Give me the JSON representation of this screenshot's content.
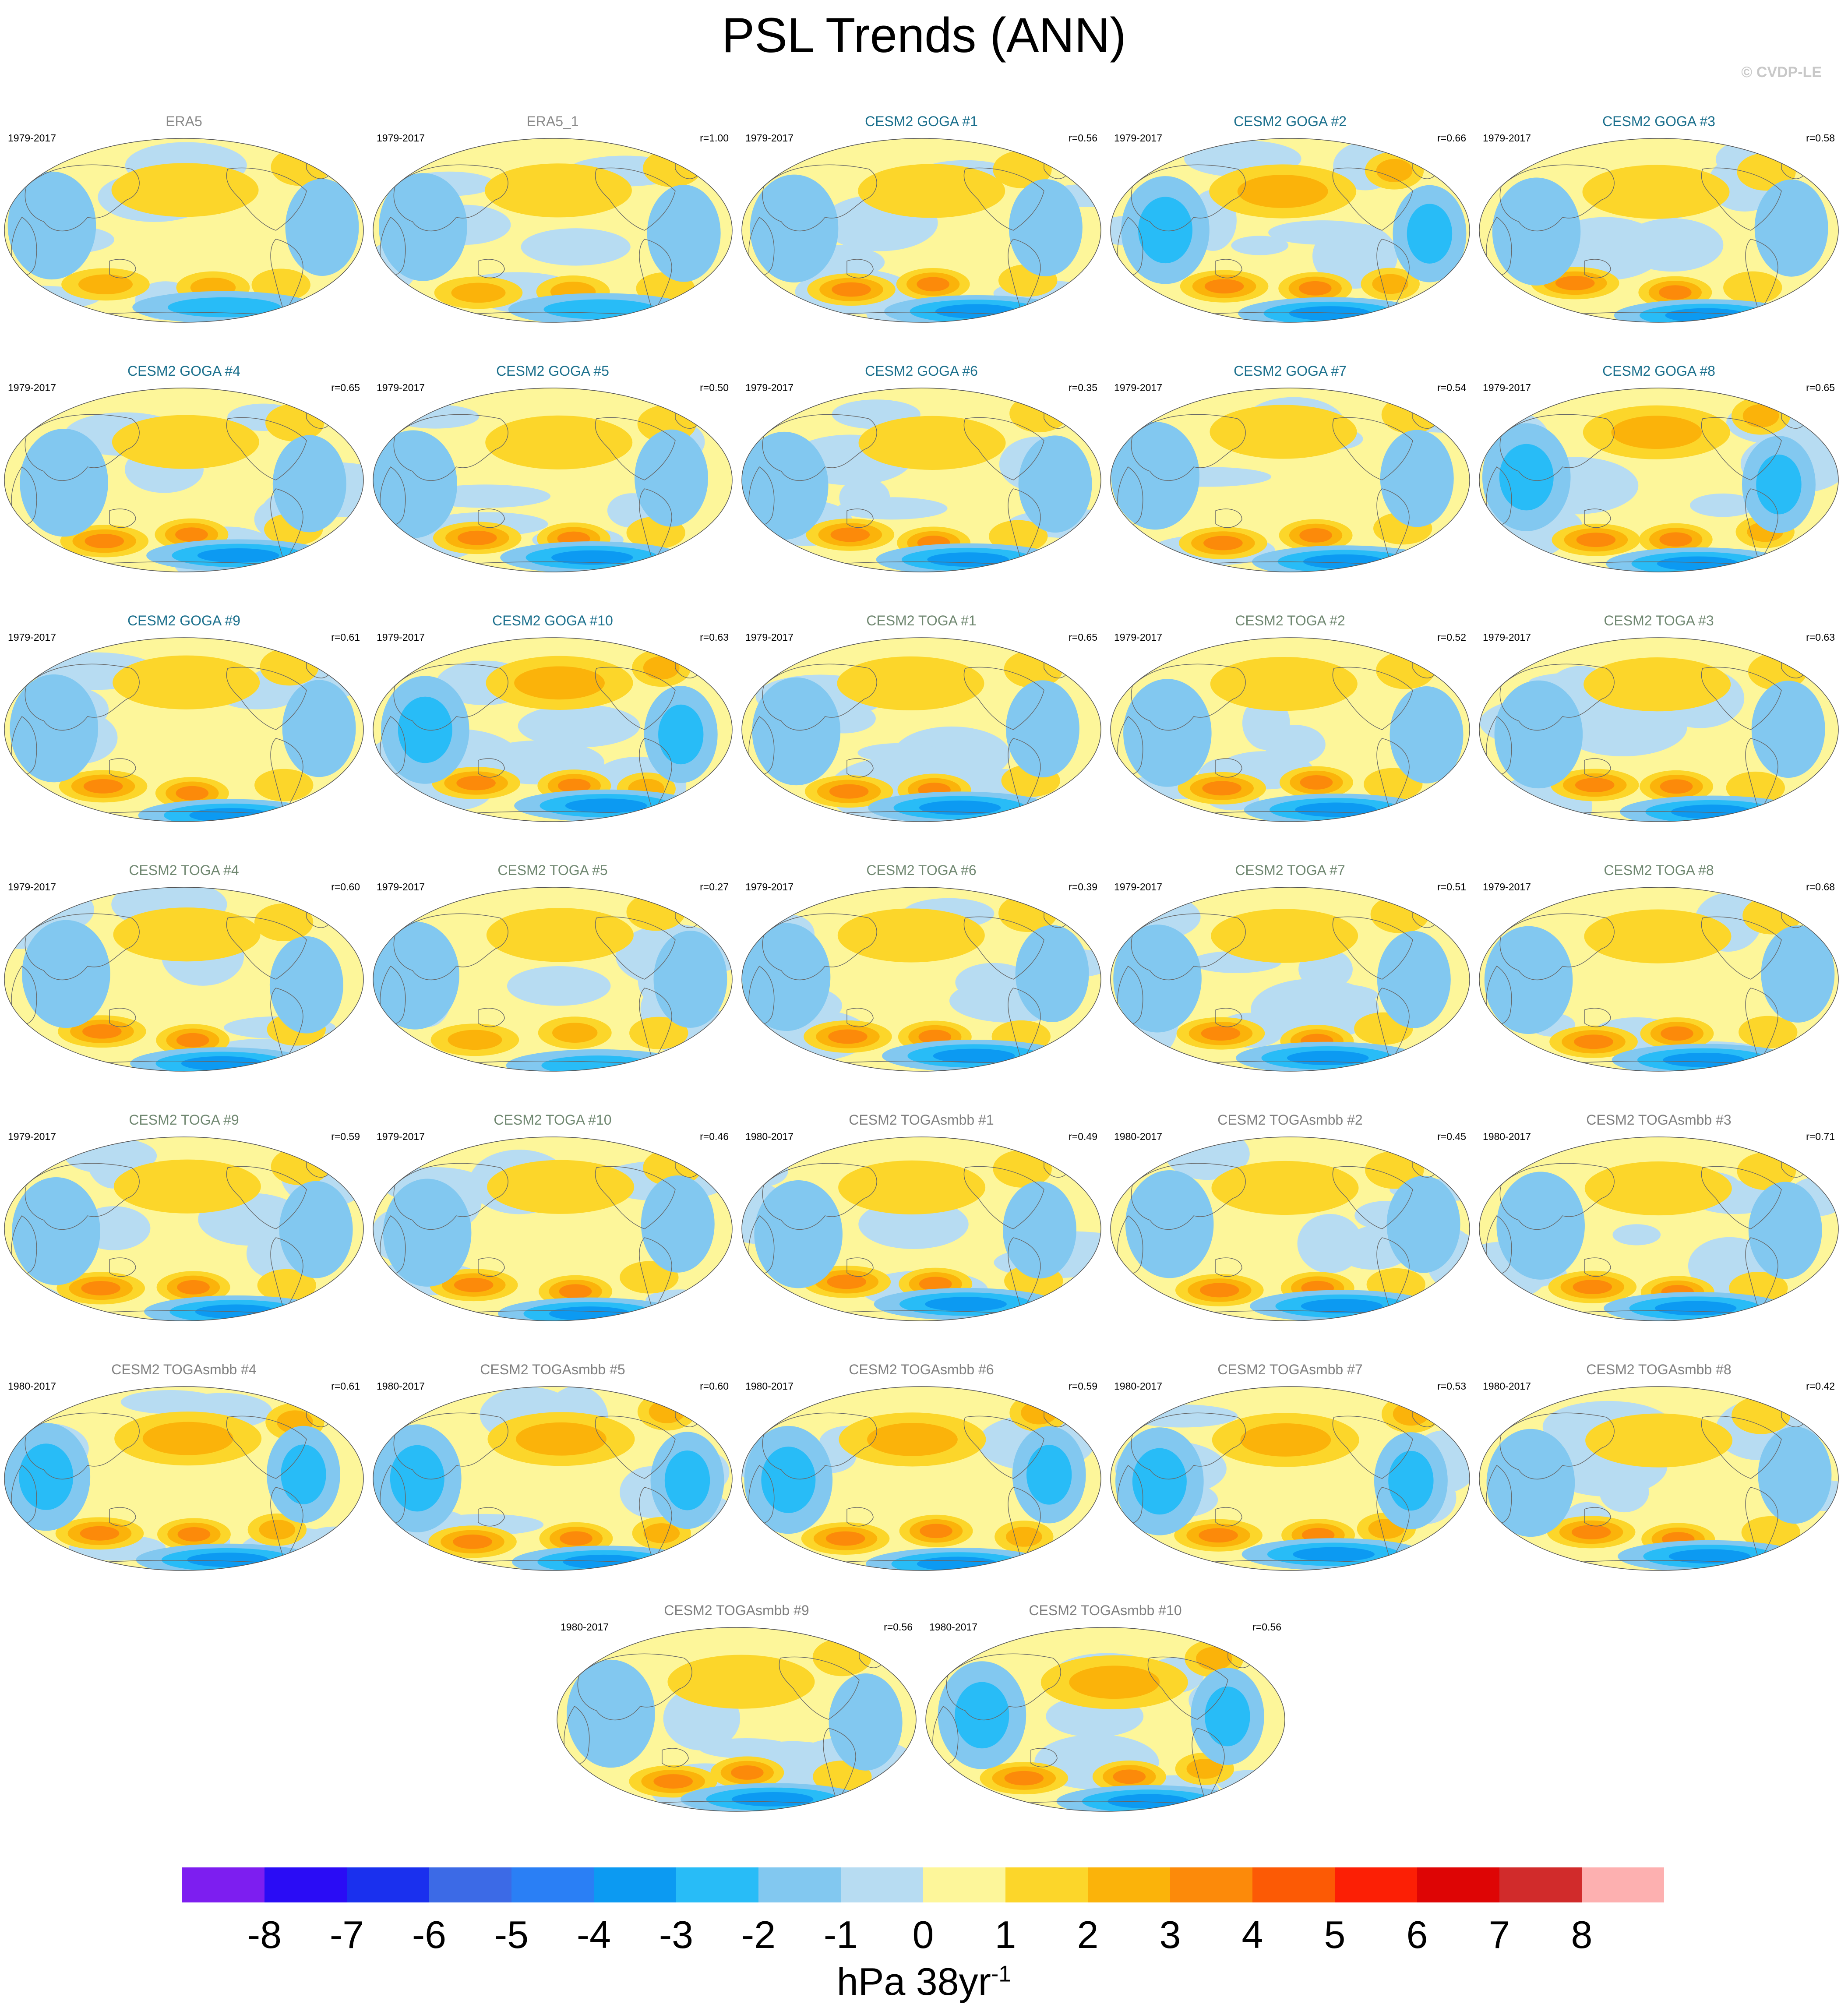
{
  "title": "PSL Trends (ANN)",
  "watermark": "© CVDP-LE",
  "colors": {
    "land_outline": "#666666",
    "obs_title": "#8a8a8a",
    "goga_title": "#1a6f8c",
    "toga_title": "#6f8770",
    "smbb_title": "#808080"
  },
  "chart_data": {
    "type": "map-grid",
    "projection": "Robinson-like global, centered on Pacific",
    "variable": "PSL",
    "season": "ANN",
    "panels": [
      {
        "title": "ERA5",
        "period": "1979-2017",
        "r": "",
        "group": "obs",
        "signal": 0.3
      },
      {
        "title": "ERA5_1",
        "period": "1979-2017",
        "r": "r=1.00",
        "group": "obs",
        "signal": 0.3
      },
      {
        "title": "CESM2 GOGA #1",
        "period": "1979-2017",
        "r": "r=0.56",
        "group": "goga",
        "signal": 0.6
      },
      {
        "title": "CESM2 GOGA #2",
        "period": "1979-2017",
        "r": "r=0.66",
        "group": "goga",
        "signal": 0.7
      },
      {
        "title": "CESM2 GOGA #3",
        "period": "1979-2017",
        "r": "r=0.58",
        "group": "goga",
        "signal": 0.55
      },
      {
        "title": "CESM2 GOGA #4",
        "period": "1979-2017",
        "r": "r=0.65",
        "group": "goga",
        "signal": 0.6
      },
      {
        "title": "CESM2 GOGA #5",
        "period": "1979-2017",
        "r": "r=0.50",
        "group": "goga",
        "signal": 0.5
      },
      {
        "title": "CESM2 GOGA #6",
        "period": "1979-2017",
        "r": "r=0.35",
        "group": "goga",
        "signal": 0.55
      },
      {
        "title": "CESM2 GOGA #7",
        "period": "1979-2017",
        "r": "r=0.54",
        "group": "goga",
        "signal": 0.5
      },
      {
        "title": "CESM2 GOGA #8",
        "period": "1979-2017",
        "r": "r=0.65",
        "group": "goga",
        "signal": 0.65
      },
      {
        "title": "CESM2 GOGA #9",
        "period": "1979-2017",
        "r": "r=0.61",
        "group": "goga",
        "signal": 0.55
      },
      {
        "title": "CESM2 GOGA #10",
        "period": "1979-2017",
        "r": "r=0.63",
        "group": "goga",
        "signal": 0.65
      },
      {
        "title": "CESM2 TOGA #1",
        "period": "1979-2017",
        "r": "r=0.65",
        "group": "toga",
        "signal": 0.5
      },
      {
        "title": "CESM2 TOGA #2",
        "period": "1979-2017",
        "r": "r=0.52",
        "group": "toga",
        "signal": 0.5
      },
      {
        "title": "CESM2 TOGA #3",
        "period": "1979-2017",
        "r": "r=0.63",
        "group": "toga",
        "signal": 0.55
      },
      {
        "title": "CESM2 TOGA #4",
        "period": "1979-2017",
        "r": "r=0.60",
        "group": "toga",
        "signal": 0.55
      },
      {
        "title": "CESM2 TOGA #5",
        "period": "1979-2017",
        "r": "r=0.27",
        "group": "toga",
        "signal": 0.45
      },
      {
        "title": "CESM2 TOGA #6",
        "period": "1979-2017",
        "r": "r=0.39",
        "group": "toga",
        "signal": 0.5
      },
      {
        "title": "CESM2 TOGA #7",
        "period": "1979-2017",
        "r": "r=0.51",
        "group": "toga",
        "signal": 0.55
      },
      {
        "title": "CESM2 TOGA #8",
        "period": "1979-2017",
        "r": "r=0.68",
        "group": "toga",
        "signal": 0.6
      },
      {
        "title": "CESM2 TOGA #9",
        "period": "1979-2017",
        "r": "r=0.59",
        "group": "toga",
        "signal": 0.55
      },
      {
        "title": "CESM2 TOGA #10",
        "period": "1979-2017",
        "r": "r=0.46",
        "group": "toga",
        "signal": 0.6
      },
      {
        "title": "CESM2 TOGAsmbb #1",
        "period": "1980-2017",
        "r": "r=0.49",
        "group": "smbb",
        "signal": 0.6
      },
      {
        "title": "CESM2 TOGAsmbb #2",
        "period": "1980-2017",
        "r": "r=0.45",
        "group": "smbb",
        "signal": 0.6
      },
      {
        "title": "CESM2 TOGAsmbb #3",
        "period": "1980-2017",
        "r": "r=0.71",
        "group": "smbb",
        "signal": 0.6
      },
      {
        "title": "CESM2 TOGAsmbb #4",
        "period": "1980-2017",
        "r": "r=0.61",
        "group": "smbb",
        "signal": 0.65
      },
      {
        "title": "CESM2 TOGAsmbb #5",
        "period": "1980-2017",
        "r": "r=0.60",
        "group": "smbb",
        "signal": 0.65
      },
      {
        "title": "CESM2 TOGAsmbb #6",
        "period": "1980-2017",
        "r": "r=0.59",
        "group": "smbb",
        "signal": 0.65
      },
      {
        "title": "CESM2 TOGAsmbb #7",
        "period": "1980-2017",
        "r": "r=0.53",
        "group": "smbb",
        "signal": 0.65
      },
      {
        "title": "CESM2 TOGAsmbb #8",
        "period": "1980-2017",
        "r": "r=0.42",
        "group": "smbb",
        "signal": 0.55
      },
      {
        "title": "CESM2 TOGAsmbb #9",
        "period": "1980-2017",
        "r": "r=0.56",
        "group": "smbb",
        "signal": 0.55
      },
      {
        "title": "CESM2 TOGAsmbb #10",
        "period": "1980-2017",
        "r": "r=0.56",
        "group": "smbb",
        "signal": 0.8
      }
    ],
    "colorbar": {
      "ticks": [
        "-8",
        "-7",
        "-6",
        "-5",
        "-4",
        "-3",
        "-2",
        "-1",
        "0",
        "1",
        "2",
        "3",
        "4",
        "5",
        "6",
        "7",
        "8"
      ],
      "colors": [
        "#7d1ef0",
        "#2a0cf5",
        "#1a30ee",
        "#3c6ae6",
        "#2a7ff5",
        "#0c9af2",
        "#28bcf7",
        "#82c8f0",
        "#b7dcf2",
        "#fdf69a",
        "#fcd62a",
        "#fbb30a",
        "#fc8a0a",
        "#fc5a05",
        "#fc1f05",
        "#de0505",
        "#d12b2b",
        "#fdb0b0"
      ],
      "range": [
        -9,
        9
      ],
      "units_base": "hPa 38yr",
      "units_exp": "-1"
    }
  }
}
